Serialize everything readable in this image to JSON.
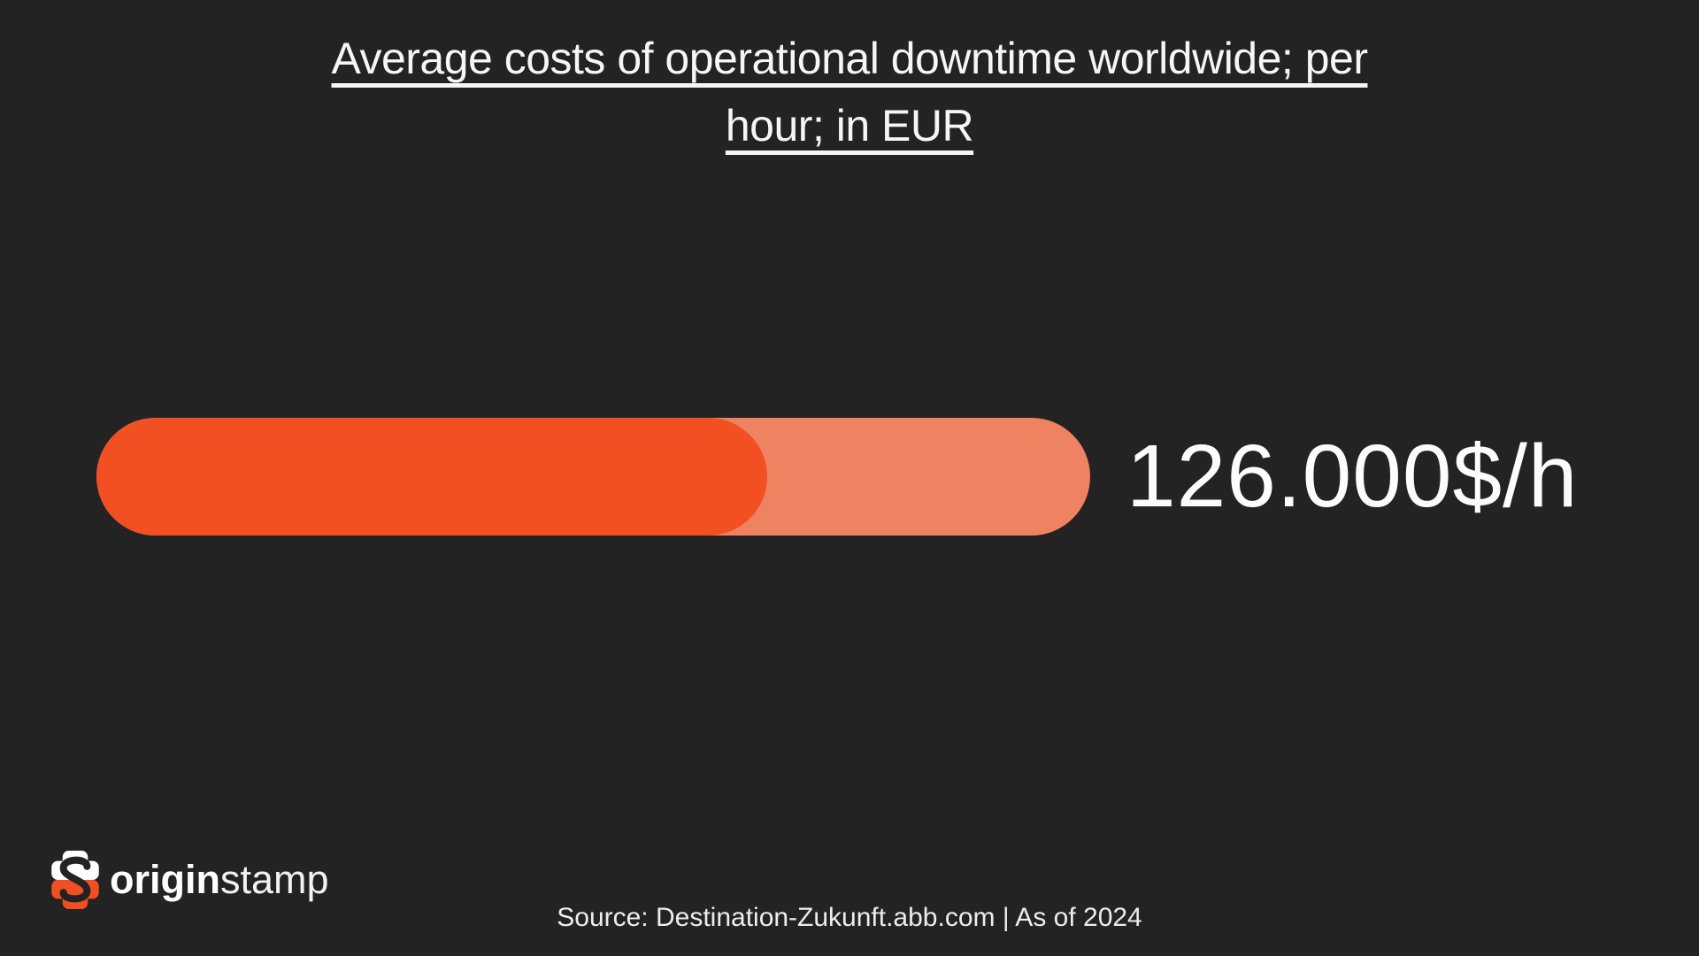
{
  "page": {
    "background_color": "#232323",
    "text_color": "#F6F6F6"
  },
  "title": {
    "line1": "Average costs of operational downtime worldwide; per",
    "line2": "hour; in EUR"
  },
  "chart_data": {
    "type": "bar",
    "orientation": "horizontal",
    "title": "Average costs of operational downtime worldwide; per hour; in EUR",
    "categories": [
      "Average costs of operational downtime worldwide per hour"
    ],
    "values": [
      126000
    ],
    "value_label": "126.000$/h",
    "unit": "$/h",
    "fill_percent": 67.5,
    "colors": {
      "bar_fill": "#F25023",
      "bar_track": "#EF8261",
      "value_text": "#FCFCFC"
    },
    "grid": false,
    "legend": false
  },
  "footer": {
    "logo": {
      "icon": "originstamp-s-stamp-icon",
      "bold_text": "origin",
      "regular_text": "stamp",
      "icon_white": "#FFFFFF",
      "icon_orange": "#F04E23"
    },
    "source": "Source: Destination-Zukunft.abb.com | As of 2024"
  }
}
